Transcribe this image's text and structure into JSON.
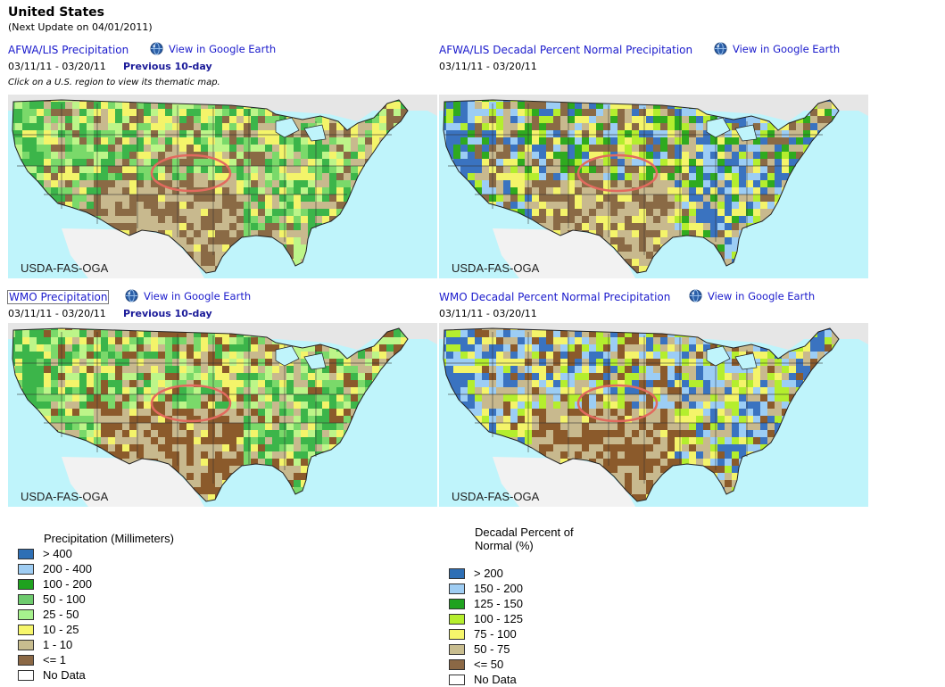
{
  "page": {
    "title": "United States",
    "next_update": "(Next Update on 04/01/2011)",
    "hint": "Click on a U.S. region to view its thematic map."
  },
  "panels": [
    {
      "title": "AFWA/LIS Precipitation",
      "google_earth": "View in Google Earth",
      "dates": "03/11/11 - 03/20/11",
      "previous": "Previous 10-day",
      "credit": "USDA-FAS-OGA",
      "palette": [
        "#8a6a45",
        "#c8b98e",
        "#f4f46a",
        "#bdf589",
        "#7ad96a",
        "#3cb54a"
      ]
    },
    {
      "title": "AFWA/LIS Decadal Percent Normal Precipitation",
      "google_earth": "View in Google Earth",
      "dates": "03/11/11 - 03/20/11",
      "credit": "USDA-FAS-OGA",
      "palette": [
        "#8a6a45",
        "#c8b98e",
        "#f4f46a",
        "#b4ee2e",
        "#2faa1f",
        "#9ccdf5",
        "#3a73c0"
      ]
    },
    {
      "title": "WMO Precipitation",
      "google_earth": "View in Google Earth",
      "dates": "03/11/11 - 03/20/11",
      "previous": "Previous 10-day",
      "credit": "USDA-FAS-OGA",
      "palette": [
        "#8b5a2b",
        "#c8b98e",
        "#f4f46a",
        "#bdf589",
        "#7ad96a",
        "#3cb54a"
      ]
    },
    {
      "title": "WMO Decadal Percent Normal Precipitation",
      "google_earth": "View in Google Earth",
      "dates": "03/11/11 - 03/20/11",
      "credit": "USDA-FAS-OGA",
      "palette": [
        "#8b5a2b",
        "#c8b98e",
        "#f4f46a",
        "#b4ee2e",
        "#9ccdf5",
        "#3a73c0"
      ]
    }
  ],
  "legend_precip": {
    "title": "Precipitation (Millimeters)",
    "items": [
      {
        "label": "> 400",
        "color": "#2e6fb5"
      },
      {
        "label": "200 - 400",
        "color": "#9fcdf3"
      },
      {
        "label": "100 - 200",
        "color": "#1fa21f"
      },
      {
        "label": "50 - 100",
        "color": "#6ecb6e"
      },
      {
        "label": "25 - 50",
        "color": "#a6f28d"
      },
      {
        "label": "10 - 25",
        "color": "#f6f66b"
      },
      {
        "label": "1 - 10",
        "color": "#c8bd8f"
      },
      {
        "label": "<= 1",
        "color": "#8b6845"
      },
      {
        "label": "No Data",
        "color": "#ffffff"
      }
    ]
  },
  "legend_percent": {
    "title_line1": "Decadal Percent of",
    "title_line2": "Normal (%)",
    "items": [
      {
        "label": "> 200",
        "color": "#2e6fb5"
      },
      {
        "label": "150 - 200",
        "color": "#9fcdf3"
      },
      {
        "label": "125 - 150",
        "color": "#1fa21f"
      },
      {
        "label": "100 - 125",
        "color": "#b5ee2e"
      },
      {
        "label": "75 - 100",
        "color": "#f6f66b"
      },
      {
        "label": "50 - 75",
        "color": "#c8bd8f"
      },
      {
        "label": "<= 50",
        "color": "#8b6845"
      },
      {
        "label": "No Data",
        "color": "#ffffff"
      }
    ]
  },
  "colors": {
    "link": "#1a1acc",
    "ocean": "#bff4fb",
    "canada": "#e6e6e6",
    "highlight_ring": "#e26a5e"
  }
}
